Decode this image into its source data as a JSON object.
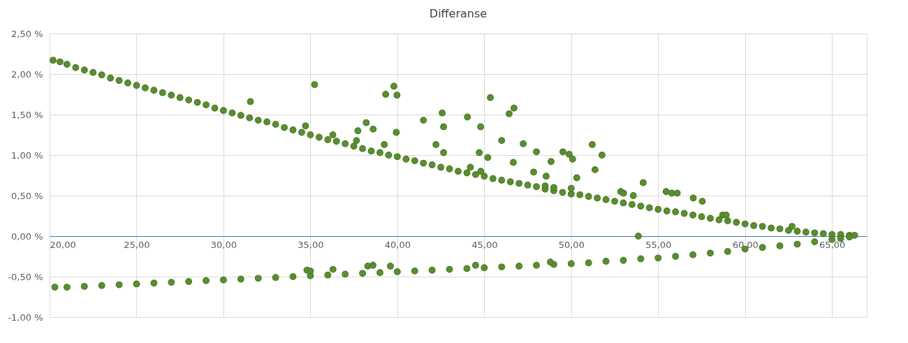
{
  "chart_data": {
    "type": "scatter",
    "title": "Differanse",
    "series": [
      {
        "color": "#5a8f2f",
        "x": [
          20.2,
          20.6,
          21,
          21.5,
          22,
          22.5,
          23,
          23.5,
          24,
          24.5,
          25,
          25.5,
          26,
          26.5,
          27,
          27.5,
          28,
          28.5,
          29,
          29.5,
          30,
          30.5,
          31,
          31.5,
          32,
          32.5,
          33,
          33.5,
          34,
          34.5,
          35,
          35.5,
          36,
          36.5,
          37,
          37.5,
          38,
          38.5,
          39,
          39.5,
          40,
          40.5,
          41,
          41.5,
          42,
          42.5,
          43,
          43.5,
          44,
          44.5,
          45,
          45.5,
          46,
          46.5,
          47,
          47.5,
          48,
          48.5,
          49,
          49.5,
          50,
          50.5,
          51,
          51.5,
          52,
          52.5,
          53,
          53.5,
          54,
          54.5,
          55,
          55.5,
          56,
          56.5,
          57,
          57.5,
          58,
          58.5,
          59,
          59.5,
          60,
          60.5,
          61,
          61.5,
          62,
          62.5,
          63,
          63.5,
          64,
          64.5,
          65,
          65.5,
          66,
          66.3,
          20.3,
          21,
          22,
          23,
          24,
          25,
          26,
          27,
          28,
          29,
          30,
          31,
          32,
          33,
          34,
          35,
          36,
          37,
          38,
          39,
          40,
          41,
          42,
          43,
          44,
          45,
          46,
          47,
          48,
          49,
          50,
          51,
          52,
          53,
          54,
          55,
          56,
          57,
          58,
          59,
          60,
          61,
          62,
          63,
          64,
          65,
          65.5,
          66,
          34.8,
          35,
          36.3,
          38.3,
          38.6,
          39.6,
          44.5,
          48.8,
          31.55,
          35.24,
          39.8,
          39.33,
          39.98,
          41.5,
          42.58,
          42.66,
          44.03,
          44.79,
          45.35,
          38.21,
          38.61,
          37.73,
          39.94,
          42.22,
          42.66,
          44.71,
          34.72,
          36.29,
          39.25,
          37.65,
          46.71,
          46.43,
          46.0,
          47.24,
          48.0,
          46.67,
          48.84,
          47.84,
          48.56,
          49.52,
          49.88,
          50.08,
          50.32,
          51.21,
          51.77,
          51.37,
          52.85,
          53.01,
          53.57,
          54.14,
          53.86,
          55.46,
          55.78,
          56.1,
          57.02,
          57.54,
          58.71,
          58.91,
          45.2,
          44.8,
          44.2,
          48.5,
          49.0,
          50.0,
          62.7
        ],
        "values": [
          2.17,
          2.15,
          2.12,
          2.08,
          2.05,
          2.02,
          1.99,
          1.95,
          1.92,
          1.89,
          1.86,
          1.83,
          1.8,
          1.77,
          1.74,
          1.71,
          1.68,
          1.65,
          1.62,
          1.58,
          1.55,
          1.52,
          1.49,
          1.46,
          1.43,
          1.41,
          1.38,
          1.34,
          1.31,
          1.28,
          1.25,
          1.22,
          1.19,
          1.17,
          1.14,
          1.11,
          1.08,
          1.05,
          1.03,
          1.0,
          0.98,
          0.95,
          0.93,
          0.9,
          0.88,
          0.85,
          0.83,
          0.8,
          0.78,
          0.76,
          0.74,
          0.71,
          0.69,
          0.67,
          0.65,
          0.63,
          0.61,
          0.58,
          0.56,
          0.54,
          0.52,
          0.51,
          0.49,
          0.47,
          0.45,
          0.43,
          0.41,
          0.39,
          0.37,
          0.35,
          0.33,
          0.31,
          0.3,
          0.28,
          0.26,
          0.24,
          0.22,
          0.2,
          0.19,
          0.17,
          0.15,
          0.13,
          0.12,
          0.1,
          0.09,
          0.07,
          0.06,
          0.05,
          0.04,
          0.03,
          0.02,
          0.02,
          0.01,
          0.01,
          -0.63,
          -0.63,
          -0.62,
          -0.61,
          -0.6,
          -0.59,
          -0.58,
          -0.57,
          -0.56,
          -0.55,
          -0.54,
          -0.53,
          -0.52,
          -0.51,
          -0.5,
          -0.49,
          -0.48,
          -0.47,
          -0.46,
          -0.45,
          -0.44,
          -0.43,
          -0.42,
          -0.41,
          -0.4,
          -0.39,
          -0.38,
          -0.37,
          -0.36,
          -0.35,
          -0.34,
          -0.33,
          -0.31,
          -0.3,
          -0.28,
          -0.27,
          -0.25,
          -0.23,
          -0.21,
          -0.19,
          -0.16,
          -0.14,
          -0.12,
          -0.1,
          -0.07,
          -0.04,
          -0.03,
          -0.01,
          -0.42,
          -0.43,
          -0.41,
          -0.37,
          -0.36,
          -0.37,
          -0.36,
          -0.32,
          1.66,
          1.87,
          1.85,
          1.75,
          1.74,
          1.43,
          1.52,
          1.35,
          1.47,
          1.35,
          1.71,
          1.4,
          1.32,
          1.3,
          1.28,
          1.13,
          1.03,
          1.03,
          1.36,
          1.25,
          1.13,
          1.18,
          1.58,
          1.51,
          1.18,
          1.14,
          1.04,
          0.91,
          0.92,
          0.79,
          0.74,
          1.04,
          1.01,
          0.95,
          0.72,
          1.13,
          1.0,
          0.82,
          0.55,
          0.53,
          0.5,
          0.66,
          0.0,
          0.55,
          0.53,
          0.53,
          0.47,
          0.43,
          0.26,
          0.26,
          0.97,
          0.8,
          0.85,
          0.62,
          0.6,
          0.59,
          0.12
        ]
      }
    ],
    "xlim": [
      20,
      67
    ],
    "xticks": [
      {
        "value": 20,
        "label": "20,00"
      },
      {
        "value": 25,
        "label": "25,00"
      },
      {
        "value": 30,
        "label": "30,00"
      },
      {
        "value": 35,
        "label": "35,00"
      },
      {
        "value": 40,
        "label": "40,00"
      },
      {
        "value": 45,
        "label": "45,00"
      },
      {
        "value": 50,
        "label": "50,00"
      },
      {
        "value": 55,
        "label": "55,00"
      },
      {
        "value": 60,
        "label": "60,00"
      },
      {
        "value": 65,
        "label": "65,00"
      }
    ],
    "ylim": [
      -1,
      2.5
    ],
    "yticks": [
      {
        "value": -1,
        "label": "-1,00 %"
      },
      {
        "value": -0.5,
        "label": "-0,50 %"
      },
      {
        "value": 0,
        "label": "0,00 %"
      },
      {
        "value": 0.5,
        "label": "0,50 %"
      },
      {
        "value": 1,
        "label": "1,00 %"
      },
      {
        "value": 1.5,
        "label": "1,50 %"
      },
      {
        "value": 2,
        "label": "2,00 %"
      },
      {
        "value": 2.5,
        "label": "2,50 %"
      }
    ],
    "grid": true,
    "marker": "circle",
    "legend": false
  }
}
